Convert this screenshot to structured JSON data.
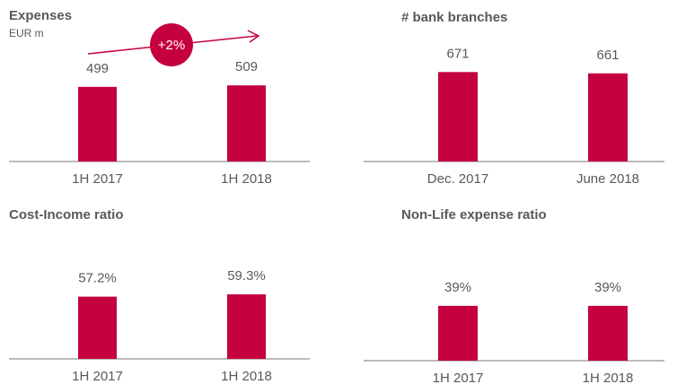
{
  "chart_data": [
    {
      "type": "bar",
      "title": "Expenses",
      "subtitle": "EUR m",
      "annotation": "+2%",
      "categories": [
        "1H 2017",
        "1H 2018"
      ],
      "values": [
        499,
        509
      ],
      "color": "#c5003e",
      "ylim": [
        0,
        600
      ]
    },
    {
      "type": "bar",
      "title": "# bank branches",
      "categories": [
        "Dec. 2017",
        "June 2018"
      ],
      "values": [
        671,
        661
      ],
      "color": "#c5003e",
      "ylim": [
        0,
        700
      ]
    },
    {
      "type": "bar",
      "title": "Cost-Income ratio",
      "categories": [
        "1H 2017",
        "1H 2018"
      ],
      "values": [
        57.2,
        59.3
      ],
      "value_labels": [
        "57.2%",
        "59.3%"
      ],
      "color": "#c5003e",
      "ylim": [
        0,
        80
      ]
    },
    {
      "type": "bar",
      "title": "Non-Life expense ratio",
      "categories": [
        "1H 2017",
        "1H 2018"
      ],
      "values": [
        39,
        39
      ],
      "value_labels": [
        "39%",
        "39%"
      ],
      "color": "#c5003e",
      "ylim": [
        0,
        60
      ]
    }
  ]
}
